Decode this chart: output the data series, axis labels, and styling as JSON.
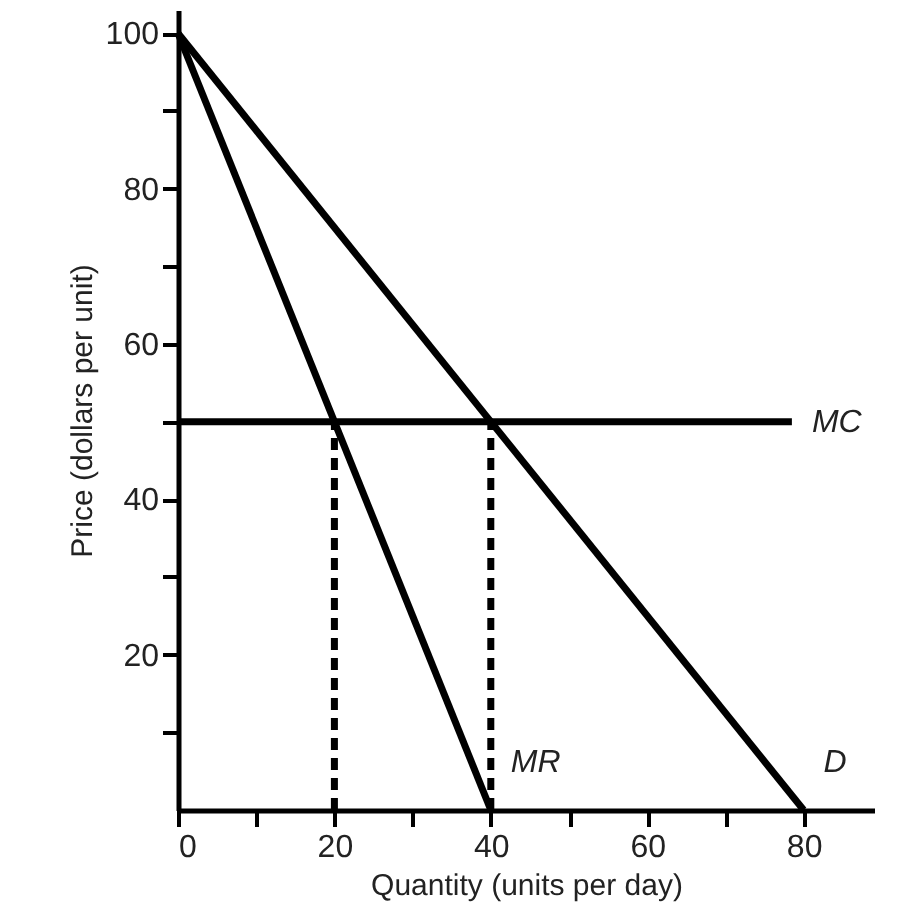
{
  "chart_data": {
    "type": "line",
    "xlabel": "Quantity (units per day)",
    "ylabel": "Price (dollars per unit)",
    "xlim": [
      0,
      89
    ],
    "ylim": [
      0,
      103
    ],
    "xticks": [
      0,
      {
        "value": 10,
        "label": null
      },
      20,
      {
        "value": 30,
        "label": null
      },
      40,
      {
        "value": 50,
        "label": null
      },
      60,
      {
        "value": 70,
        "label": null
      },
      80
    ],
    "yticks": [
      {
        "value": 10,
        "label": null
      },
      20,
      {
        "value": 30,
        "label": null
      },
      40,
      {
        "value": 50,
        "label": null
      },
      60,
      {
        "value": 70,
        "label": null
      },
      80,
      {
        "value": 90,
        "label": null
      },
      100
    ],
    "grid": false,
    "marker": "none",
    "series": [
      {
        "name": "D",
        "color": "#000000",
        "x": [
          0,
          80
        ],
        "values": [
          100,
          0
        ]
      },
      {
        "name": "MR",
        "color": "#000000",
        "x": [
          0,
          40
        ],
        "values": [
          100,
          0
        ]
      },
      {
        "name": "MC",
        "color": "#000000",
        "x": [
          0,
          78.5
        ],
        "values": [
          50,
          50
        ]
      },
      {
        "color": "#000000",
        "x": [
          20,
          20
        ],
        "values": [
          0,
          50
        ],
        "line_style": "dashed"
      },
      {
        "color": "#000000",
        "x": [
          40,
          40
        ],
        "values": [
          0,
          50
        ],
        "line_style": "dashed"
      }
    ]
  }
}
